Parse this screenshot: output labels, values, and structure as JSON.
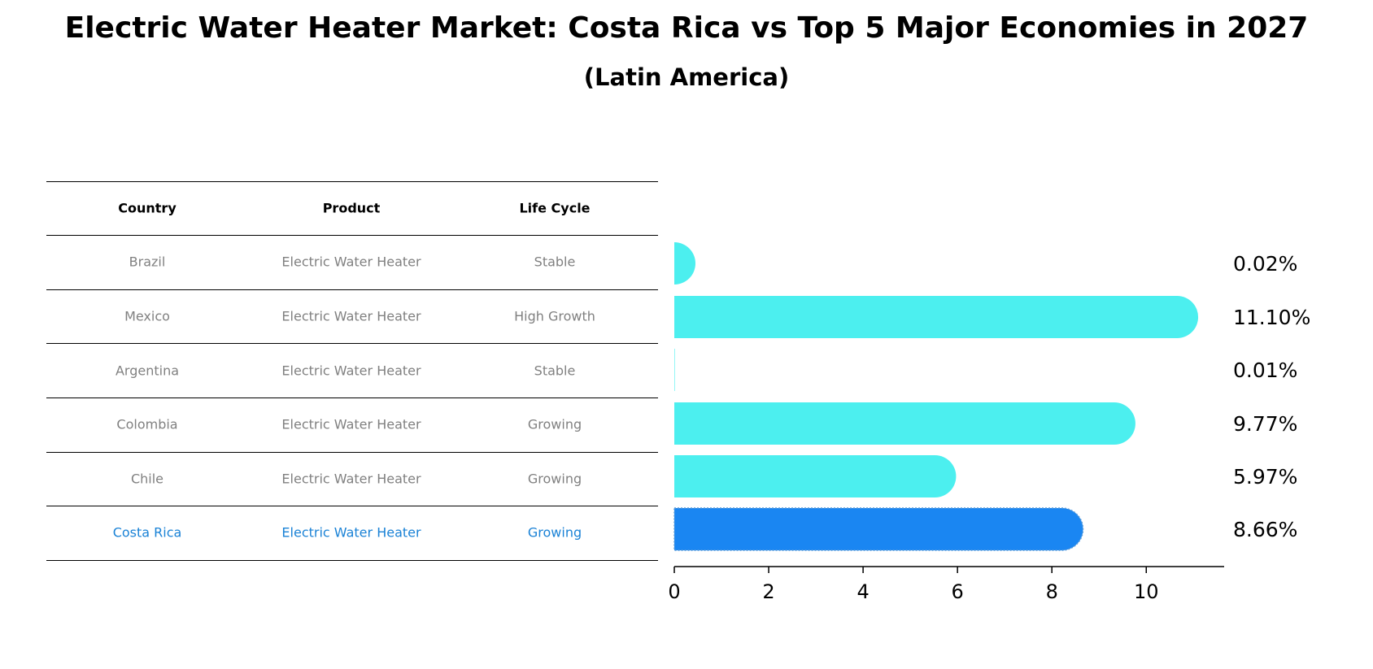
{
  "title": "Electric Water Heater Market: Costa Rica vs Top 5 Major Economies in 2027",
  "subtitle": "(Latin America)",
  "table": {
    "headers": [
      "Country",
      "Product",
      "Life Cycle"
    ],
    "rows": [
      {
        "country": "Brazil",
        "product": "Electric Water Heater",
        "life_cycle": "Stable",
        "highlight": false
      },
      {
        "country": "Mexico",
        "product": "Electric Water Heater",
        "life_cycle": "High Growth",
        "highlight": false
      },
      {
        "country": "Argentina",
        "product": "Electric Water Heater",
        "life_cycle": "Stable",
        "highlight": false
      },
      {
        "country": "Colombia",
        "product": "Electric Water Heater",
        "life_cycle": "Growing",
        "highlight": false
      },
      {
        "country": "Chile",
        "product": "Electric Water Heater",
        "life_cycle": "Growing",
        "highlight": false
      },
      {
        "country": "Costa Rica",
        "product": "Electric Water Heater",
        "life_cycle": "Growing",
        "highlight": true
      }
    ]
  },
  "colors": {
    "bar": "#4cefef",
    "highlight_bar": "#1a86f2",
    "highlight_text": "#1a82d6",
    "row_text": "#808080"
  },
  "chart_data": {
    "type": "bar",
    "orientation": "horizontal",
    "categories": [
      "Brazil",
      "Mexico",
      "Argentina",
      "Colombia",
      "Chile",
      "Costa Rica"
    ],
    "values": [
      0.02,
      11.1,
      0.01,
      9.77,
      5.97,
      8.66
    ],
    "value_labels": [
      "0.02%",
      "11.10%",
      "0.01%",
      "9.77%",
      "5.97%",
      "8.66%"
    ],
    "highlight": "Costa Rica",
    "xlim": [
      0,
      11.65
    ],
    "xticks": [
      0,
      2,
      4,
      6,
      8,
      10
    ],
    "xtick_labels": [
      "0",
      "2",
      "4",
      "6",
      "8",
      "10"
    ],
    "bar_style": "rounded end",
    "grid": false
  }
}
